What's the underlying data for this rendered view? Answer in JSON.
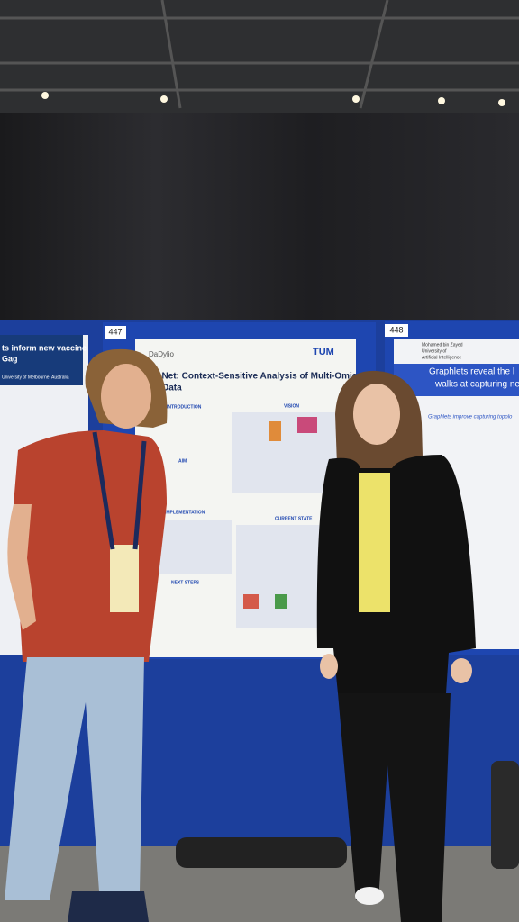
{
  "scene": {
    "left_poster": {
      "title_lines": [
        "ts inform new vaccine",
        "Gag"
      ],
      "affiliation": "University of Melbourne, Australia"
    },
    "center_poster": {
      "number": "447",
      "logo_left": "DaDylio",
      "logo_right": "TUM",
      "title_lines": [
        "thNet: Context-Sensitive Analysis of Multi-Omics",
        "Data"
      ],
      "sections": [
        "INTRODUCTION",
        "AIM",
        "IMPLEMENTATION",
        "NEXT STEPS",
        "VISION",
        "CURRENT STATE"
      ]
    },
    "right_poster": {
      "number": "448",
      "institution_lines": [
        "Mohamed bin Zayed",
        "University of",
        "Artificial Intelligence"
      ],
      "title_lines": [
        "Graphlets reveal the l",
        "walks at capturing ne"
      ],
      "subtitle": "Graphlets improve capturing topolo"
    }
  }
}
